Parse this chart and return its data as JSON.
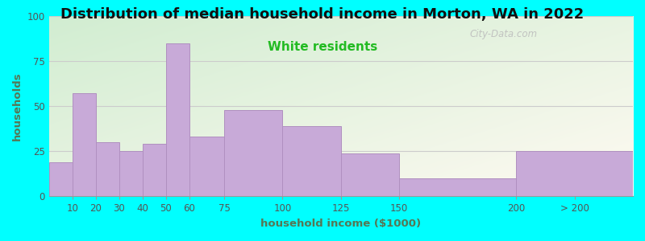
{
  "title": "Distribution of median household income in Morton, WA in 2022",
  "subtitle": "White residents",
  "xlabel": "household income ($1000)",
  "ylabel": "households",
  "title_fontsize": 13,
  "subtitle_fontsize": 11,
  "subtitle_color": "#22bb22",
  "ylabel_color": "#557755",
  "xlabel_color": "#557755",
  "background_color": "#00ffff",
  "bar_color": "#c8aad8",
  "bar_edge_color": "#b090c0",
  "bin_edges": [
    0,
    10,
    20,
    30,
    40,
    50,
    60,
    75,
    100,
    125,
    150,
    200,
    250
  ],
  "bin_labels": [
    "10",
    "20",
    "30",
    "40",
    "50",
    "60",
    "75",
    "100",
    "125",
    "150",
    "200",
    "> 200"
  ],
  "values": [
    19,
    57,
    30,
    25,
    29,
    85,
    33,
    48,
    39,
    24,
    10,
    25
  ],
  "xlim": [
    0,
    250
  ],
  "ylim": [
    0,
    100
  ],
  "yticks": [
    0,
    25,
    50,
    75,
    100
  ],
  "xtick_positions": [
    10,
    20,
    30,
    40,
    50,
    60,
    75,
    100,
    125,
    150,
    200,
    225
  ],
  "xtick_labels": [
    "10",
    "20",
    "30",
    "40",
    "50",
    "60",
    "75",
    "100",
    "125",
    "150",
    "200",
    "> 200"
  ],
  "grid_color": "#cccccc",
  "watermark": "City-Data.com"
}
